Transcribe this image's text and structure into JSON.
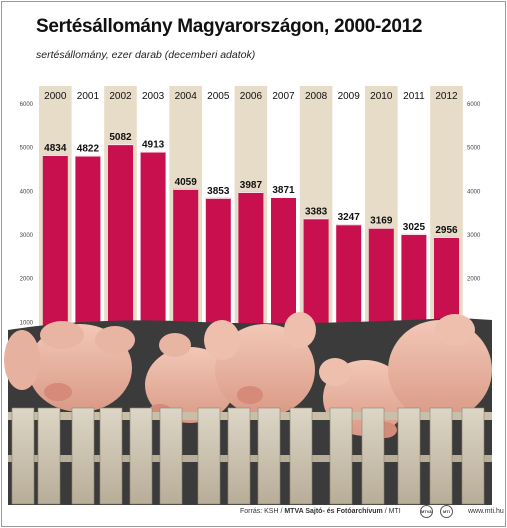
{
  "header": {
    "title": "Sertésállomány Magyarországon, 2000-2012",
    "subtitle": "sertésállomány, ezer darab (decemberi adatok)"
  },
  "chart_data": {
    "type": "bar",
    "title": "Sertésállomány Magyarországon, 2000-2012",
    "subtitle": "sertésállomány, ezer darab (decemberi adatok)",
    "categories": [
      "2000",
      "2001",
      "2002",
      "2003",
      "2004",
      "2005",
      "2006",
      "2007",
      "2008",
      "2009",
      "2010",
      "2011",
      "2012"
    ],
    "values": [
      4834,
      4822,
      5082,
      4913,
      4059,
      3853,
      3987,
      3871,
      3383,
      3247,
      3169,
      3025,
      2956
    ],
    "ylim": [
      0,
      6000
    ],
    "yticks": [
      1000,
      2000,
      3000,
      4000,
      5000,
      6000
    ],
    "ytick_labels": [
      "1000",
      "2000",
      "3000",
      "4000",
      "5000",
      "6000"
    ],
    "bar_color": "#c8104e",
    "column_band_color": "#e7dcc7",
    "grid": false
  },
  "footer": {
    "source_prefix": "Forrás: KSH / ",
    "source_bold": "MTVA Sajtó- és Fotóarchívum",
    "source_suffix": " / MTI",
    "logo_1": "MTVA",
    "logo_2": "MTI",
    "url": "www.mti.hu"
  }
}
